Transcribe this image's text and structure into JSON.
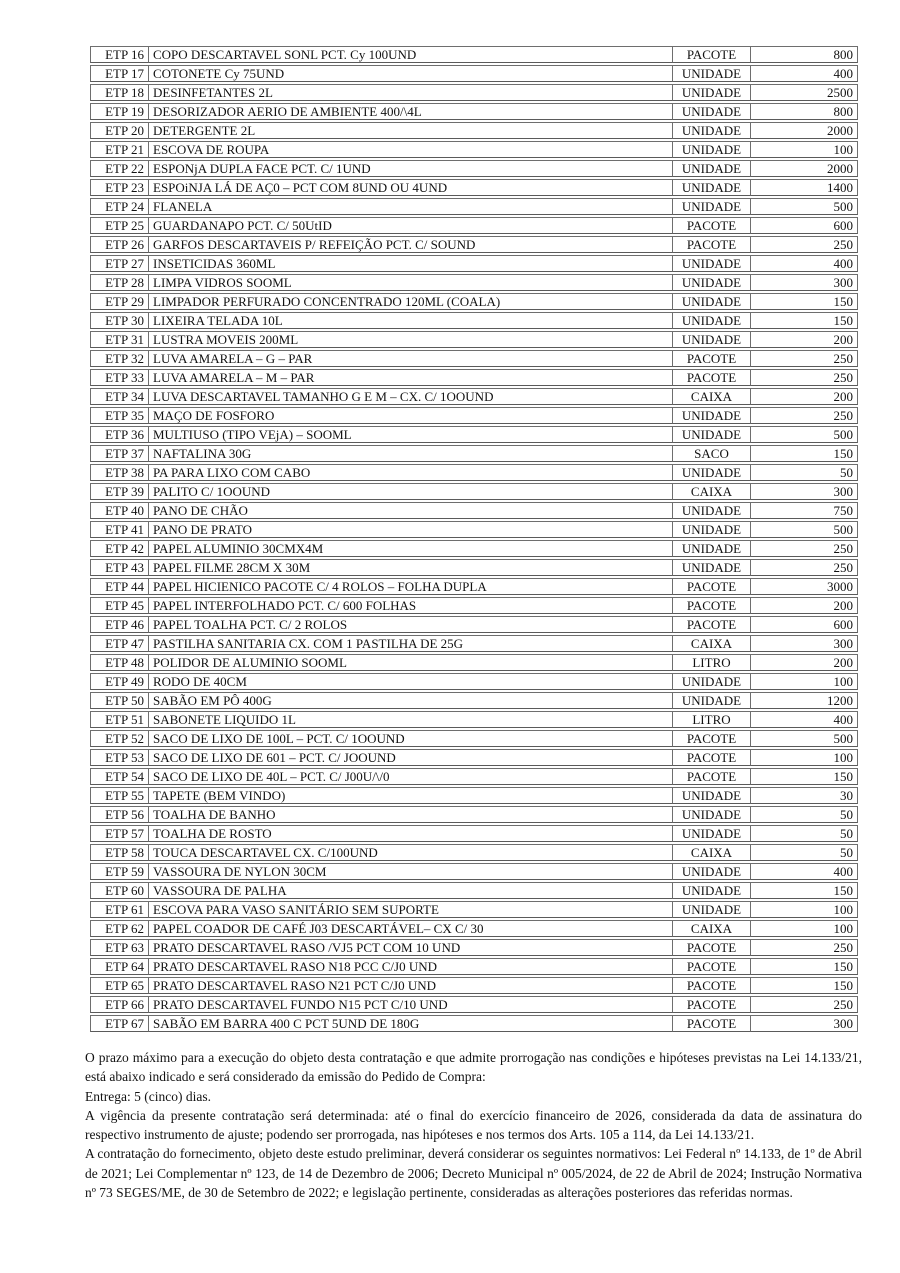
{
  "table": {
    "rows": [
      {
        "code": "ETP 16",
        "desc": "COPO DESCARTAVEL SONL PCT. Cy 100UND",
        "unit": "PACOTE",
        "qty": "800"
      },
      {
        "code": "ETP 17",
        "desc": "COTONETE Cy 75UND",
        "unit": "UNIDADE",
        "qty": "400"
      },
      {
        "code": "ETP 18",
        "desc": "DESINFETANTES 2L",
        "unit": "UNIDADE",
        "qty": "2500"
      },
      {
        "code": "ETP 19",
        "desc": "DESORIZADOR AERIO DE AMBIENTE 400/\\4L",
        "unit": "UNIDADE",
        "qty": "800"
      },
      {
        "code": "ETP 20",
        "desc": "DETERGENTE 2L",
        "unit": "UNIDADE",
        "qty": "2000"
      },
      {
        "code": "ETP 21",
        "desc": "ESCOVA DE ROUPA",
        "unit": "UNIDADE",
        "qty": "100"
      },
      {
        "code": "ETP 22",
        "desc": "ESPONjA DUPLA FACE PCT. C/ 1UND",
        "unit": "UNIDADE",
        "qty": "2000"
      },
      {
        "code": "ETP 23",
        "desc": "ESPOiNJA LÁ DE AÇ0 – PCT COM 8UND OU 4UND",
        "unit": "UNIDADE",
        "qty": "1400"
      },
      {
        "code": "ETP 24",
        "desc": "FLANELA",
        "unit": "UNIDADE",
        "qty": "500"
      },
      {
        "code": "ETP 25",
        "desc": "GUARDANAPO PCT. C/ 50UtID",
        "unit": "PACOTE",
        "qty": "600"
      },
      {
        "code": "ETP 26",
        "desc": "GARFOS DESCARTAVEIS P/ REFEIÇÃO PCT. C/ SOUND",
        "unit": "PACOTE",
        "qty": "250"
      },
      {
        "code": "ETP 27",
        "desc": "INSETICIDAS 360ML",
        "unit": "UNIDADE",
        "qty": "400"
      },
      {
        "code": "ETP 28",
        "desc": "LIMPA VIDROS SOOML",
        "unit": "UNIDADE",
        "qty": "300"
      },
      {
        "code": "ETP 29",
        "desc": "LIMPADOR PERFURADO CONCENTRADO 120ML (COALA)",
        "unit": "UNIDADE",
        "qty": "150"
      },
      {
        "code": "ETP 30",
        "desc": "LIXEIRA TELADA 10L",
        "unit": "UNIDADE",
        "qty": "150"
      },
      {
        "code": "ETP 31",
        "desc": "LUSTRA MOVEIS 200ML",
        "unit": "UNIDADE",
        "qty": "200"
      },
      {
        "code": "ETP 32",
        "desc": "LUVA AMARELA – G – PAR",
        "unit": "PACOTE",
        "qty": "250"
      },
      {
        "code": "ETP 33",
        "desc": "LUVA AMARELA – M – PAR",
        "unit": "PACOTE",
        "qty": "250"
      },
      {
        "code": "ETP 34",
        "desc": "LUVA DESCARTAVEL TAMANHO G E M – CX. C/ 1OOUND",
        "unit": "CAIXA",
        "qty": "200"
      },
      {
        "code": "ETP 35",
        "desc": "MAÇO DE FOSFORO",
        "unit": "UNIDADE",
        "qty": "250"
      },
      {
        "code": "ETP 36",
        "desc": "MULTIUSO (TIPO VEjA) – SOOML",
        "unit": "UNIDADE",
        "qty": "500"
      },
      {
        "code": "ETP 37",
        "desc": "NAFTALINA 30G",
        "unit": "SACO",
        "qty": "150"
      },
      {
        "code": "ETP 38",
        "desc": "PA PARA LIXO COM CABO",
        "unit": "UNIDADE",
        "qty": "50"
      },
      {
        "code": "ETP 39",
        "desc": "PALITO C/ 1OOUND",
        "unit": "CAIXA",
        "qty": "300"
      },
      {
        "code": "ETP 40",
        "desc": "PANO DE CHÃO",
        "unit": "UNIDADE",
        "qty": "750"
      },
      {
        "code": "ETP 41",
        "desc": "PANO DE PRATO",
        "unit": "UNIDADE",
        "qty": "500"
      },
      {
        "code": "ETP 42",
        "desc": "PAPEL ALUMINIO 30CMX4M",
        "unit": "UNIDADE",
        "qty": "250"
      },
      {
        "code": "ETP 43",
        "desc": "PAPEL FILME 28CM X 30M",
        "unit": "UNIDADE",
        "qty": "250"
      },
      {
        "code": "ETP 44",
        "desc": "PAPEL HICIENICO PACOTE C/ 4 ROLOS – FOLHA DUPLA",
        "unit": "PACOTE",
        "qty": "3000"
      },
      {
        "code": "ETP 45",
        "desc": "PAPEL INTERFOLHADO PCT. C/ 600 FOLHAS",
        "unit": "PACOTE",
        "qty": "200"
      },
      {
        "code": "ETP 46",
        "desc": "PAPEL TOALHA PCT. C/ 2 ROLOS",
        "unit": "PACOTE",
        "qty": "600"
      },
      {
        "code": "ETP 47",
        "desc": "PASTILHA SANITARIA CX. COM 1 PASTILHA DE 25G",
        "unit": "CAIXA",
        "qty": "300"
      },
      {
        "code": "ETP 48",
        "desc": "POLIDOR DE ALUMINIO SOOML",
        "unit": "LITRO",
        "qty": "200"
      },
      {
        "code": "ETP 49",
        "desc": "RODO DE 40CM",
        "unit": "UNIDADE",
        "qty": "100"
      },
      {
        "code": "ETP 50",
        "desc": "SABÃO EM PÔ 400G",
        "unit": "UNIDADE",
        "qty": "1200"
      },
      {
        "code": "ETP 51",
        "desc": "SABONETE LIQUIDO 1L",
        "unit": "LITRO",
        "qty": "400"
      },
      {
        "code": "ETP 52",
        "desc": "SACO DE LIXO DE 100L – PCT. C/ 1OOUND",
        "unit": "PACOTE",
        "qty": "500"
      },
      {
        "code": "ETP 53",
        "desc": "SACO DE LIXO DE 601 – PCT. C/ JOOUND",
        "unit": "PACOTE",
        "qty": "100"
      },
      {
        "code": "ETP 54",
        "desc": "SACO DE LIXO DE 40L – PCT. C/ J00U/\\/0",
        "unit": "PACOTE",
        "qty": "150"
      },
      {
        "code": "ETP 55",
        "desc": "TAPETE (BEM VINDO)",
        "unit": "UNIDADE",
        "qty": "30"
      },
      {
        "code": "ETP 56",
        "desc": "TOALHA DE BANHO",
        "unit": "UNIDADE",
        "qty": "50"
      },
      {
        "code": "ETP 57",
        "desc": "TOALHA DE ROSTO",
        "unit": "UNIDADE",
        "qty": "50"
      },
      {
        "code": "ETP 58",
        "desc": "TOUCA DESCARTAVEL CX. C/100UND",
        "unit": "CAIXA",
        "qty": "50"
      },
      {
        "code": "ETP 59",
        "desc": "VASSOURA DE NYLON 30CM",
        "unit": "UNIDADE",
        "qty": "400"
      },
      {
        "code": "ETP 60",
        "desc": "VASSOURA DE PALHA",
        "unit": "UNIDADE",
        "qty": "150"
      },
      {
        "code": "ETP 61",
        "desc": "ESCOVA PARA VASO SANITÁRIO SEM SUPORTE",
        "unit": "UNIDADE",
        "qty": "100"
      },
      {
        "code": "ETP 62",
        "desc": "PAPEL COADOR DE CAFÉ J03 DESCARTÁVEL– CX C/ 30",
        "unit": "CAIXA",
        "qty": "100"
      },
      {
        "code": "ETP 63",
        "desc": "PRATO DESCARTAVEL RASO /VJ5 PCT COM 10 UND",
        "unit": "PACOTE",
        "qty": "250"
      },
      {
        "code": "ETP 64",
        "desc": "PRATO DESCARTAVEL RASO N18 PCC C/J0 UND",
        "unit": "PACOTE",
        "qty": "150"
      },
      {
        "code": "ETP 65",
        "desc": "PRATO DESCARTAVEL RASO N21 PCT C/J0 UND",
        "unit": "PACOTE",
        "qty": "150"
      },
      {
        "code": "ETP 66",
        "desc": "PRATO DESCARTAVEL FUNDO N15 PCT C/10 UND",
        "unit": "PACOTE",
        "qty": "250"
      },
      {
        "code": "ETP 67",
        "desc": "SABÃO EM BARRA 400 C PCT 5UND DE 180G",
        "unit": "PACOTE",
        "qty": "300"
      }
    ]
  },
  "paragraphs": [
    "O prazo máximo para a execução do objeto desta contratação e que admite prorrogação nas condições e hipóteses previstas na Lei 14.133/21, está abaixo indicado e será considerado da emissão do Pedido de Compra:",
    "Entrega: 5 (cinco) dias.",
    "A vigência da presente contratação será determinada: até o final do exercício financeiro de 2026, considerada da data de assinatura do respectivo instrumento de ajuste; podendo ser prorrogada, nas hipóteses e nos termos dos Arts. 105 a 114, da Lei 14.133/21.",
    "A contratação do fornecimento, objeto deste estudo preliminar, deverá considerar os seguintes normativos: Lei Federal nº 14.133, de 1º de Abril de 2021; Lei Complementar nº 123, de 14 de Dezembro de 2006; Decreto Municipal nº 005/2024, de 22 de Abril de 2024; Instrução Normativa nº 73 SEGES/ME, de 30 de Setembro de 2022; e legislação pertinente, consideradas as alterações posteriores das referidas normas."
  ]
}
